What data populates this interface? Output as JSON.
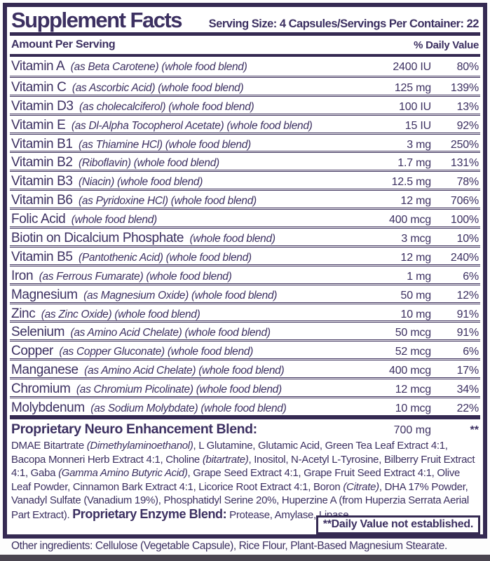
{
  "header": {
    "title": "Supplement Facts",
    "serving_info": "Serving Size: 4 Capsules/Servings Per Container: 22"
  },
  "columns": {
    "amount_header": "Amount Per Serving",
    "dv_header": "% Daily Value"
  },
  "rows": [
    {
      "name": "Vitamin A",
      "detail": "(as Beta Carotene) (whole food blend)",
      "amount": "2400 IU",
      "dv": "80%"
    },
    {
      "name": "Vitamin C",
      "detail": "(as Ascorbic Acid) (whole food blend)",
      "amount": "125 mg",
      "dv": "139%"
    },
    {
      "name": "Vitamin D3",
      "detail": "(as cholecalciferol) (whole food blend)",
      "amount": "100 IU",
      "dv": "13%"
    },
    {
      "name": "Vitamin E",
      "detail": "(as Dl-Alpha Tocopherol Acetate) (whole food blend)",
      "amount": "15 IU",
      "dv": "92%"
    },
    {
      "name": "Vitamin B1",
      "detail": "(as Thiamine HCl) (whole food blend)",
      "amount": "3 mg",
      "dv": "250%"
    },
    {
      "name": "Vitamin B2",
      "detail": "(Riboflavin) (whole food blend)",
      "amount": "1.7 mg",
      "dv": "131%"
    },
    {
      "name": "Vitamin B3",
      "detail": "(Niacin) (whole food blend)",
      "amount": "12.5 mg",
      "dv": "78%"
    },
    {
      "name": "Vitamin B6",
      "detail": "(as Pyridoxine HCl) (whole food blend)",
      "amount": "12 mg",
      "dv": "706%"
    },
    {
      "name": "Folic Acid",
      "detail": "(whole food blend)",
      "amount": "400 mcg",
      "dv": "100%"
    },
    {
      "name": "Biotin on Dicalcium Phosphate",
      "detail": "(whole food blend)",
      "amount": "3 mcg",
      "dv": "10%"
    },
    {
      "name": "Vitamin B5",
      "detail": "(Pantothenic Acid) (whole food blend)",
      "amount": "12 mg",
      "dv": "240%"
    },
    {
      "name": "Iron",
      "detail": "(as Ferrous Fumarate) (whole food blend)",
      "amount": "1 mg",
      "dv": "6%"
    },
    {
      "name": "Magnesium",
      "detail": "(as Magnesium Oxide) (whole food blend)",
      "amount": "50 mg",
      "dv": "12%"
    },
    {
      "name": "Zinc",
      "detail": "(as Zinc Oxide) (whole food blend)",
      "amount": "10 mg",
      "dv": "91%"
    },
    {
      "name": "Selenium",
      "detail": "(as Amino Acid Chelate) (whole food blend)",
      "amount": "50 mcg",
      "dv": "91%"
    },
    {
      "name": "Copper",
      "detail": "(as Copper Gluconate) (whole food blend)",
      "amount": "52 mcg",
      "dv": "6%"
    },
    {
      "name": "Manganese",
      "detail": "(as Amino Acid Chelate) (whole food blend)",
      "amount": "400 mcg",
      "dv": "17%"
    },
    {
      "name": "Chromium",
      "detail": "(as Chromium Picolinate) (whole food blend)",
      "amount": "12 mcg",
      "dv": "34%"
    },
    {
      "name": "Molybdenum",
      "detail": "(as Sodium Molybdate) (whole food blend)",
      "amount": "10 mcg",
      "dv": "22%"
    }
  ],
  "blend": {
    "name": "Proprietary Neuro Enhancement Blend:",
    "amount": "700 mg",
    "dv": "**",
    "description": [
      {
        "t": "DMAE Bitartrate ",
        "s": "n"
      },
      {
        "t": "(Dimethylaminoethanol)",
        "s": "i"
      },
      {
        "t": ", L Glutamine, Glutamic Acid, Green Tea Leaf Extract 4:1, Bacopa Monneri Herb Extract 4:1, Choline ",
        "s": "n"
      },
      {
        "t": "(bitartrate)",
        "s": "i"
      },
      {
        "t": ", Inositol, N-Acetyl L-Tyrosine, Bilberry Fruit Extract 4:1, Gaba ",
        "s": "n"
      },
      {
        "t": "(Gamma Amino Butyric Acid)",
        "s": "i"
      },
      {
        "t": ", Grape Seed Extract 4:1, Grape Fruit Seed Extract 4:1, Olive Leaf Powder, Cinnamon Bark Extract 4:1, Licorice Root Extract 4:1, Boron ",
        "s": "n"
      },
      {
        "t": "(Citrate)",
        "s": "i"
      },
      {
        "t": ", DHA 17% Powder, Vanadyl Sulfate (Vanadium 19%), Phosphatidyl Serine 20%, Huperzine A (from Huperzia Serrata Aerial Part Extract). ",
        "s": "n"
      },
      {
        "t": "Proprietary Enzyme Blend:",
        "s": "b"
      },
      {
        "t": " Protease, Amylase, Lipase.",
        "s": "n"
      }
    ]
  },
  "footnote": "**Daily Value not established.",
  "other_ingredients": "Other ingredients: Cellulose (Vegetable Capsule), Rice Flour, Plant-Based Magnesium Stearate.",
  "colors": {
    "text": "#3c3061",
    "border": "#352a52",
    "background": "#ffffff",
    "bottom_strip": "#4a4550"
  }
}
